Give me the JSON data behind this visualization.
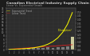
{
  "title": "Canadian Electrical Industry Supply Chain",
  "subtitle": "Linear Vs. Exponential Growth",
  "background_color": "#1c1c1c",
  "plot_bg_color": "#2d2d2d",
  "bar_color": "#888888",
  "bar_color_highlight": "#ddddaa",
  "years": [
    1,
    2,
    3,
    4,
    5,
    6,
    7,
    8,
    9,
    10,
    11,
    12,
    13,
    14
  ],
  "bar_values": [
    0.4,
    0.5,
    0.6,
    0.7,
    0.9,
    0.8,
    1.1,
    1.0,
    1.2,
    1.1,
    1.3,
    1.2,
    2.0,
    7.5
  ],
  "linear_values": [
    0.2,
    0.4,
    0.6,
    0.8,
    1.0,
    1.2,
    1.4,
    1.6,
    1.8,
    2.0,
    2.2,
    2.4,
    2.6,
    2.8
  ],
  "exp_values": [
    0.15,
    0.22,
    0.32,
    0.47,
    0.68,
    1.0,
    1.46,
    2.15,
    3.16,
    4.64,
    6.81,
    10.0,
    14.7,
    21.5
  ],
  "linear_color": "#dd2222",
  "exp_color": "#ffff00",
  "annotation_text": "(Disruptive)",
  "annotation_color": "#ffff00",
  "legend_exp": "Exponential Trend",
  "legend_lin": "Linear Trend",
  "right_yticks": [
    0.0,
    0.05,
    0.1,
    0.15,
    0.2,
    0.25,
    0.3,
    0.35,
    0.4,
    0.45,
    0.5
  ],
  "right_ylim": [
    0,
    0.55
  ],
  "left_ylim": [
    0,
    24
  ],
  "left_yticks": [
    0,
    2,
    4,
    6,
    8,
    10,
    12,
    14,
    16,
    18,
    20,
    22,
    24
  ],
  "title_color": "#cccccc",
  "subtitle_color": "#999999",
  "tick_color": "#aaaaaa",
  "grid_color": "#3d3d3d"
}
